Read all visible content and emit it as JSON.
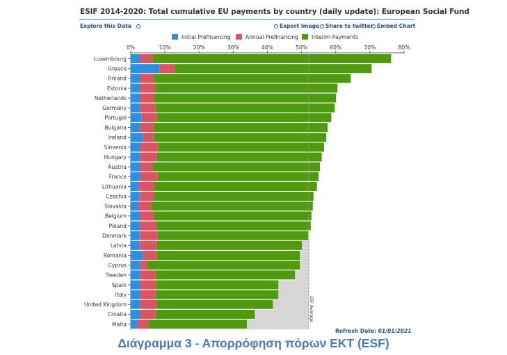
{
  "header": {
    "title": "ESIF 2014-2020: Total cumulative EU payments by country (daily update): European Social Fund",
    "explore_label": "Explore this Data",
    "export_label": "Export Image",
    "share_label": "Share to twitter",
    "embed_label": "Embed Chart"
  },
  "colors": {
    "initial": "#2f8fdf",
    "annual": "#db5461",
    "interim": "#4f9a0e",
    "below_average": "#d6d6d6",
    "link": "#1f4f8f",
    "caption": "#4a7ab8"
  },
  "chart_data": {
    "type": "bar",
    "orientation": "horizontal",
    "stacked": true,
    "legend_position": "top",
    "xlim": [
      0,
      80
    ],
    "x_ticks": [
      "0%",
      "10%",
      "20%",
      "30%",
      "40%",
      "50%",
      "60%",
      "70%",
      "80%"
    ],
    "categories": [
      "Luxembourg",
      "Greece",
      "Finland",
      "Estonia",
      "Netherlands",
      "Germany",
      "Portugal",
      "Bulgaria",
      "Ireland",
      "Slovenia",
      "Hungary",
      "Austria",
      "France",
      "Lithuania",
      "Czechia",
      "Slovakia",
      "Belgium",
      "Poland",
      "Denmark",
      "Latvia",
      "Romania",
      "Cyprus",
      "Sweden",
      "Spain",
      "Italy",
      "United Kingdom",
      "Croatia",
      "Malta"
    ],
    "series": [
      {
        "name": "Initial Prefinancing",
        "values": [
          2.8,
          8.4,
          2.8,
          2.8,
          2.8,
          2.8,
          3.2,
          2.8,
          3.7,
          2.8,
          2.8,
          2.8,
          2.9,
          2.4,
          2.6,
          2.2,
          2.8,
          2.8,
          2.6,
          2.6,
          3.7,
          2.9,
          2.8,
          2.8,
          2.8,
          2.8,
          2.8,
          2.0
        ]
      },
      {
        "name": "Annual Prefinancing",
        "values": [
          3.6,
          4.6,
          4.1,
          4.4,
          3.9,
          4.5,
          4.5,
          3.9,
          3.2,
          5.3,
          4.9,
          3.6,
          5.0,
          4.5,
          4.1,
          3.8,
          3.9,
          4.7,
          5.3,
          5.1,
          4.0,
          1.9,
          4.4,
          4.6,
          4.5,
          4.9,
          4.5,
          3.3
        ]
      },
      {
        "name": "Interim Payments",
        "values": [
          69.8,
          57.5,
          57.5,
          53.3,
          53.4,
          52.4,
          51.0,
          50.9,
          50.3,
          48.5,
          48.2,
          49.0,
          47.1,
          47.6,
          46.8,
          47.3,
          46.2,
          45.2,
          44.0,
          42.4,
          41.8,
          44.7,
          40.9,
          35.8,
          35.9,
          33.9,
          29.0,
          28.7
        ]
      }
    ],
    "reference_line": {
      "label": "ESF Average",
      "value": 52.1
    }
  },
  "footer": {
    "refresh_label": "Refresh Date:",
    "refresh_date": "01/01/2021",
    "caption": "Διάγραμμα 3 - Απορρόφηση πόρων ΕΚΤ (ESF)"
  }
}
